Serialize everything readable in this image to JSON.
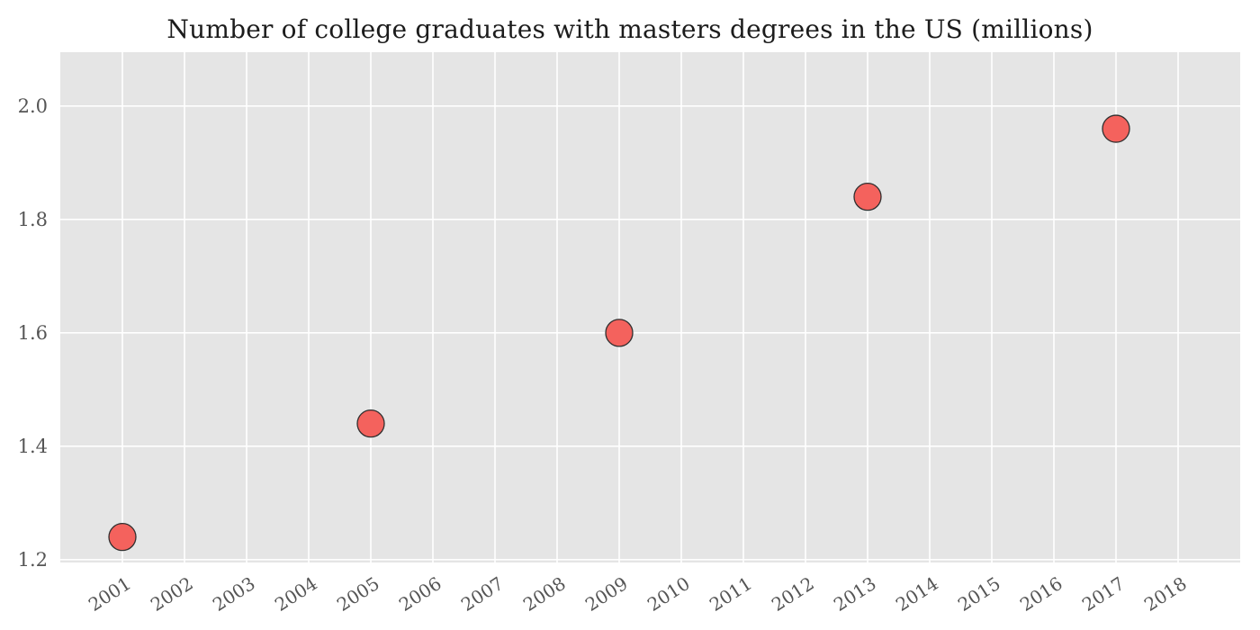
{
  "figure": {
    "background": "#ffffff",
    "panel_background": "#e5e5e5",
    "grid_color": "#ffffff",
    "tick_label_color": "#555555",
    "title_color": "#1c1c1c",
    "marker_fill": "#f4625d",
    "marker_edge": "#2f2f2f"
  },
  "chart_data": {
    "type": "scatter",
    "title": "Number of college graduates with masters degrees in the US (millions)",
    "x": [
      2001,
      2005,
      2009,
      2013,
      2017
    ],
    "y": [
      1.24,
      1.44,
      1.6,
      1.84,
      1.96
    ],
    "xlabel": "",
    "ylabel": "",
    "xlim": [
      2000,
      2019
    ],
    "ylim": [
      1.195,
      2.095
    ],
    "x_ticks": [
      2001,
      2002,
      2003,
      2004,
      2005,
      2006,
      2007,
      2008,
      2009,
      2010,
      2011,
      2012,
      2013,
      2014,
      2015,
      2016,
      2017,
      2018
    ],
    "x_tick_labels": [
      "2001",
      "2002",
      "2003",
      "2004",
      "2005",
      "2006",
      "2007",
      "2008",
      "2009",
      "2010",
      "2011",
      "2012",
      "2013",
      "2014",
      "2015",
      "2016",
      "2017",
      "2018"
    ],
    "y_ticks": [
      1.2,
      1.4,
      1.6,
      1.8,
      2.0
    ],
    "y_tick_labels": [
      "1.2",
      "1.4",
      "1.6",
      "1.8",
      "2.0"
    ],
    "grid": true,
    "legend": false,
    "marker_radius_px": 15,
    "x_tick_rotation_deg": -33
  }
}
